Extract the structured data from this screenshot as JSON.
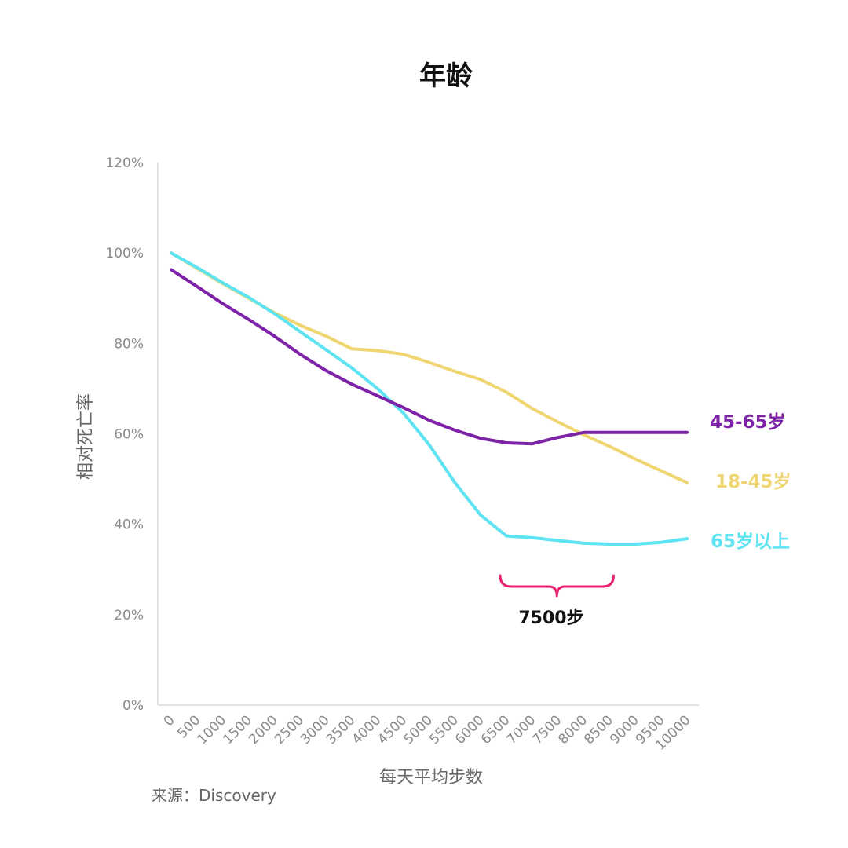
{
  "chart_data": {
    "type": "line",
    "title": "年龄",
    "xlabel": "每天平均步数",
    "ylabel": "相对死亡率",
    "source": "来源：Discovery",
    "x": [
      0,
      500,
      1000,
      1500,
      2000,
      2500,
      3000,
      3500,
      4000,
      4500,
      5000,
      5500,
      6000,
      6500,
      7000,
      7500,
      8000,
      8500,
      9000,
      9500,
      10000
    ],
    "x_tick_labels": [
      "0",
      "500",
      "1000",
      "1500",
      "2000",
      "2500",
      "3000",
      "3500",
      "4000",
      "4500",
      "5000",
      "5500",
      "6000",
      "6500",
      "7000",
      "7500",
      "8000",
      "8500",
      "9000",
      "9500",
      "10000"
    ],
    "y_ticks": [
      0,
      20,
      40,
      60,
      80,
      100,
      120
    ],
    "y_tick_labels": [
      "0%",
      "20%",
      "40%",
      "60%",
      "80%",
      "100%",
      "120%"
    ],
    "ylim": [
      0,
      120
    ],
    "grid": false,
    "legend": "labels at line ends (right)",
    "series": [
      {
        "name": "45-65岁",
        "color": "#7e22a8",
        "values": [
          96.3,
          92.6,
          88.8,
          85.3,
          81.6,
          77.6,
          74.0,
          71.0,
          68.4,
          65.8,
          63.0,
          60.8,
          59.0,
          58.0,
          57.8,
          59.2,
          60.3,
          60.3,
          60.3,
          60.3,
          60.3
        ]
      },
      {
        "name": "18-45岁",
        "color": "#f0d672",
        "values": [
          100.0,
          96.6,
          93.2,
          90.0,
          86.8,
          84.0,
          81.6,
          78.8,
          78.4,
          77.6,
          75.8,
          73.8,
          72.0,
          69.2,
          65.6,
          62.6,
          59.8,
          57.2,
          54.4,
          51.8,
          49.2
        ]
      },
      {
        "name": "65岁以上",
        "color": "#5ee3f2",
        "values": [
          100.0,
          96.8,
          93.4,
          90.2,
          86.6,
          82.6,
          78.6,
          74.6,
          70.0,
          64.6,
          57.6,
          49.2,
          42.0,
          37.4,
          37.0,
          36.4,
          35.8,
          35.6,
          35.6,
          36.0,
          36.8
        ]
      }
    ],
    "annotation": {
      "text": "7500步",
      "color": "#e8206f",
      "x_range": [
        6500,
        8500
      ]
    }
  }
}
